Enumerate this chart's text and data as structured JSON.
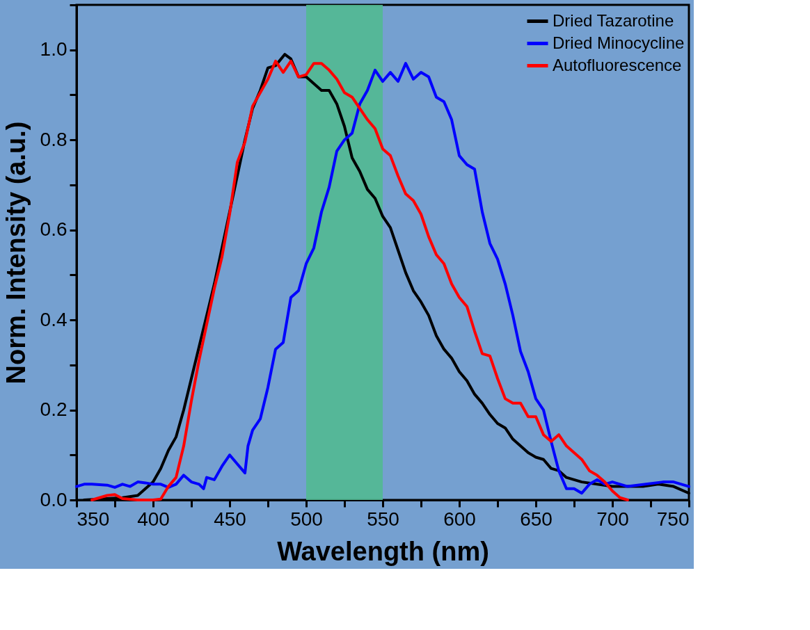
{
  "chart_data": {
    "type": "line",
    "xlabel": "Wavelength (nm)",
    "ylabel": "Norm. Intensity (a.u.)",
    "xlim": [
      350,
      750
    ],
    "ylim": [
      0,
      1.1
    ],
    "xticks": [
      350,
      {
        "value": 375,
        "label": null
      },
      400,
      {
        "value": 425,
        "label": null
      },
      450,
      {
        "value": 475,
        "label": null
      },
      500,
      {
        "value": 525,
        "label": null
      },
      550,
      {
        "value": 575,
        "label": null
      },
      600,
      {
        "value": 625,
        "label": null
      },
      650,
      {
        "value": 675,
        "label": null
      },
      700,
      {
        "value": 725,
        "label": null
      },
      750
    ],
    "yticks": [
      {
        "value": 0,
        "label": "0.0"
      },
      {
        "value": 0.1,
        "label": null
      },
      {
        "value": 0.2,
        "label": "0.2"
      },
      {
        "value": 0.3,
        "label": null
      },
      {
        "value": 0.4,
        "label": "0.4"
      },
      {
        "value": 0.5,
        "label": null
      },
      {
        "value": 0.6,
        "label": "0.6"
      },
      {
        "value": 0.7,
        "label": null
      },
      {
        "value": 0.8,
        "label": "0.8"
      },
      {
        "value": 0.9,
        "label": null
      },
      {
        "value": 1,
        "label": "1.0"
      },
      {
        "value": 1.1,
        "label": null
      }
    ],
    "grid": false,
    "legend": "top right",
    "marker": "none",
    "line_style": "solid",
    "bands": [
      {
        "axis": "x",
        "from": 500,
        "to": 550,
        "color": "#52b991"
      }
    ],
    "series": [
      {
        "name": "Dried Tazarotine",
        "color": "#000000",
        "x": [
          355,
          380,
          390,
          400,
          405,
          410,
          415,
          420,
          425,
          430,
          435,
          440,
          445,
          450,
          455,
          460,
          465,
          470,
          475,
          480,
          486,
          490,
          495,
          500,
          505,
          510,
          515,
          520,
          525,
          530,
          535,
          540,
          545,
          550,
          555,
          560,
          565,
          570,
          575,
          580,
          585,
          590,
          595,
          600,
          605,
          610,
          615,
          620,
          625,
          630,
          635,
          640,
          645,
          650,
          655,
          660,
          665,
          670,
          675,
          680,
          690,
          700,
          710,
          720,
          730,
          740,
          750
        ],
        "values": [
          0.0,
          0.005,
          0.01,
          0.04,
          0.07,
          0.11,
          0.14,
          0.2,
          0.27,
          0.34,
          0.41,
          0.48,
          0.56,
          0.64,
          0.72,
          0.8,
          0.87,
          0.91,
          0.96,
          0.965,
          0.99,
          0.98,
          0.94,
          0.94,
          0.925,
          0.91,
          0.91,
          0.88,
          0.83,
          0.76,
          0.73,
          0.69,
          0.67,
          0.63,
          0.605,
          0.555,
          0.505,
          0.465,
          0.44,
          0.41,
          0.365,
          0.335,
          0.315,
          0.285,
          0.265,
          0.235,
          0.215,
          0.19,
          0.17,
          0.16,
          0.135,
          0.12,
          0.105,
          0.095,
          0.09,
          0.07,
          0.065,
          0.05,
          0.045,
          0.04,
          0.035,
          0.03,
          0.03,
          0.03,
          0.035,
          0.03,
          0.015
        ]
      },
      {
        "name": "Dried Minocycline",
        "color": "#0000ff",
        "x": [
          350,
          355,
          360,
          370,
          375,
          380,
          385,
          390,
          395,
          400,
          405,
          410,
          415,
          420,
          425,
          430,
          433,
          435,
          440,
          445,
          450,
          455,
          460,
          462,
          465,
          470,
          475,
          480,
          485,
          490,
          495,
          500,
          505,
          510,
          515,
          520,
          525,
          530,
          535,
          540,
          545,
          550,
          555,
          560,
          565,
          570,
          575,
          580,
          585,
          590,
          595,
          600,
          605,
          610,
          615,
          620,
          625,
          630,
          635,
          640,
          645,
          650,
          655,
          660,
          665,
          670,
          675,
          680,
          685,
          690,
          695,
          700,
          710,
          733,
          740,
          750
        ],
        "values": [
          0.03,
          0.035,
          0.035,
          0.033,
          0.028,
          0.035,
          0.03,
          0.04,
          0.038,
          0.035,
          0.035,
          0.028,
          0.035,
          0.055,
          0.04,
          0.035,
          0.025,
          0.05,
          0.045,
          0.075,
          0.1,
          0.08,
          0.06,
          0.12,
          0.155,
          0.18,
          0.25,
          0.335,
          0.35,
          0.45,
          0.465,
          0.525,
          0.56,
          0.64,
          0.695,
          0.775,
          0.8,
          0.815,
          0.88,
          0.91,
          0.955,
          0.93,
          0.95,
          0.93,
          0.97,
          0.935,
          0.95,
          0.94,
          0.895,
          0.885,
          0.845,
          0.765,
          0.745,
          0.735,
          0.64,
          0.57,
          0.535,
          0.48,
          0.41,
          0.33,
          0.285,
          0.225,
          0.2,
          0.13,
          0.065,
          0.025,
          0.025,
          0.015,
          0.035,
          0.045,
          0.035,
          0.04,
          0.03,
          0.04,
          0.04,
          0.03
        ]
      },
      {
        "name": "Autofluorescence",
        "color": "#ff0000",
        "x": [
          360,
          370,
          375,
          380,
          390,
          400,
          405,
          410,
          415,
          420,
          425,
          430,
          435,
          440,
          445,
          450,
          455,
          460,
          465,
          470,
          475,
          480,
          485,
          490,
          495,
          500,
          505,
          510,
          515,
          520,
          525,
          530,
          535,
          540,
          545,
          550,
          555,
          560,
          565,
          570,
          575,
          580,
          585,
          590,
          595,
          600,
          605,
          610,
          615,
          620,
          625,
          630,
          635,
          640,
          645,
          650,
          655,
          660,
          665,
          670,
          675,
          680,
          685,
          690,
          695,
          700,
          705,
          710
        ],
        "values": [
          0.0,
          0.01,
          0.012,
          0.003,
          0.0,
          0.0,
          0.002,
          0.03,
          0.05,
          0.12,
          0.22,
          0.31,
          0.39,
          0.47,
          0.54,
          0.635,
          0.75,
          0.795,
          0.875,
          0.905,
          0.935,
          0.975,
          0.95,
          0.975,
          0.94,
          0.945,
          0.97,
          0.97,
          0.955,
          0.935,
          0.905,
          0.895,
          0.87,
          0.845,
          0.825,
          0.78,
          0.765,
          0.72,
          0.68,
          0.665,
          0.635,
          0.585,
          0.545,
          0.525,
          0.48,
          0.45,
          0.43,
          0.375,
          0.325,
          0.32,
          0.27,
          0.225,
          0.215,
          0.215,
          0.185,
          0.185,
          0.145,
          0.13,
          0.145,
          0.12,
          0.105,
          0.09,
          0.065,
          0.055,
          0.04,
          0.02,
          0.005,
          0.0
        ]
      }
    ]
  }
}
